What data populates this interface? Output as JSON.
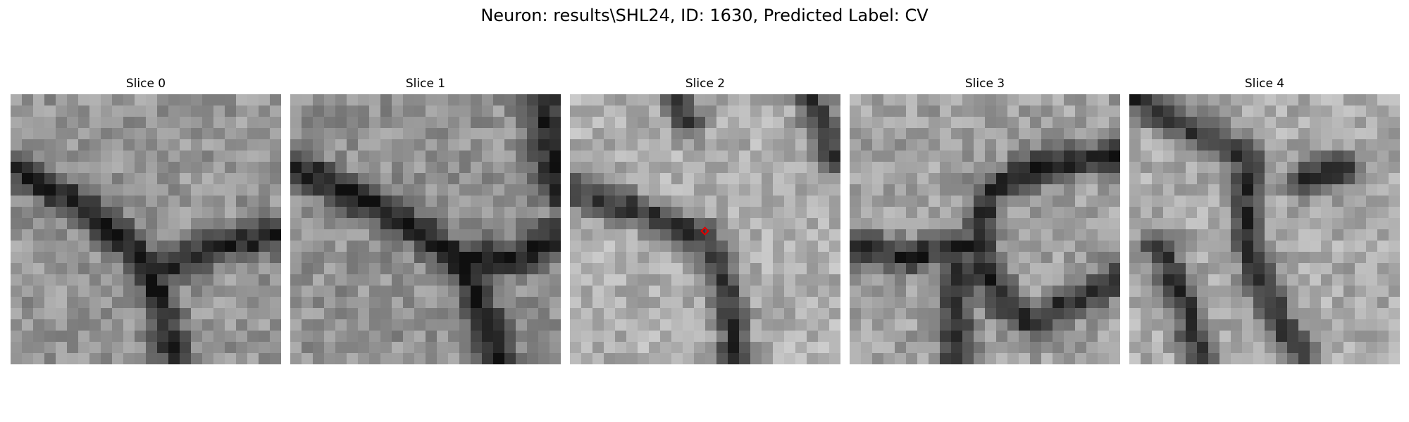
{
  "figure": {
    "title": "Neuron: results\\SHL24, ID: 1630, Predicted Label: CV"
  },
  "slices": [
    {
      "title": "Slice 0"
    },
    {
      "title": "Slice 1"
    },
    {
      "title": "Slice 2"
    },
    {
      "title": "Slice 3"
    },
    {
      "title": "Slice 4"
    }
  ],
  "marker": {
    "slice": 2,
    "color": "#e00000",
    "shape": "diamond"
  }
}
